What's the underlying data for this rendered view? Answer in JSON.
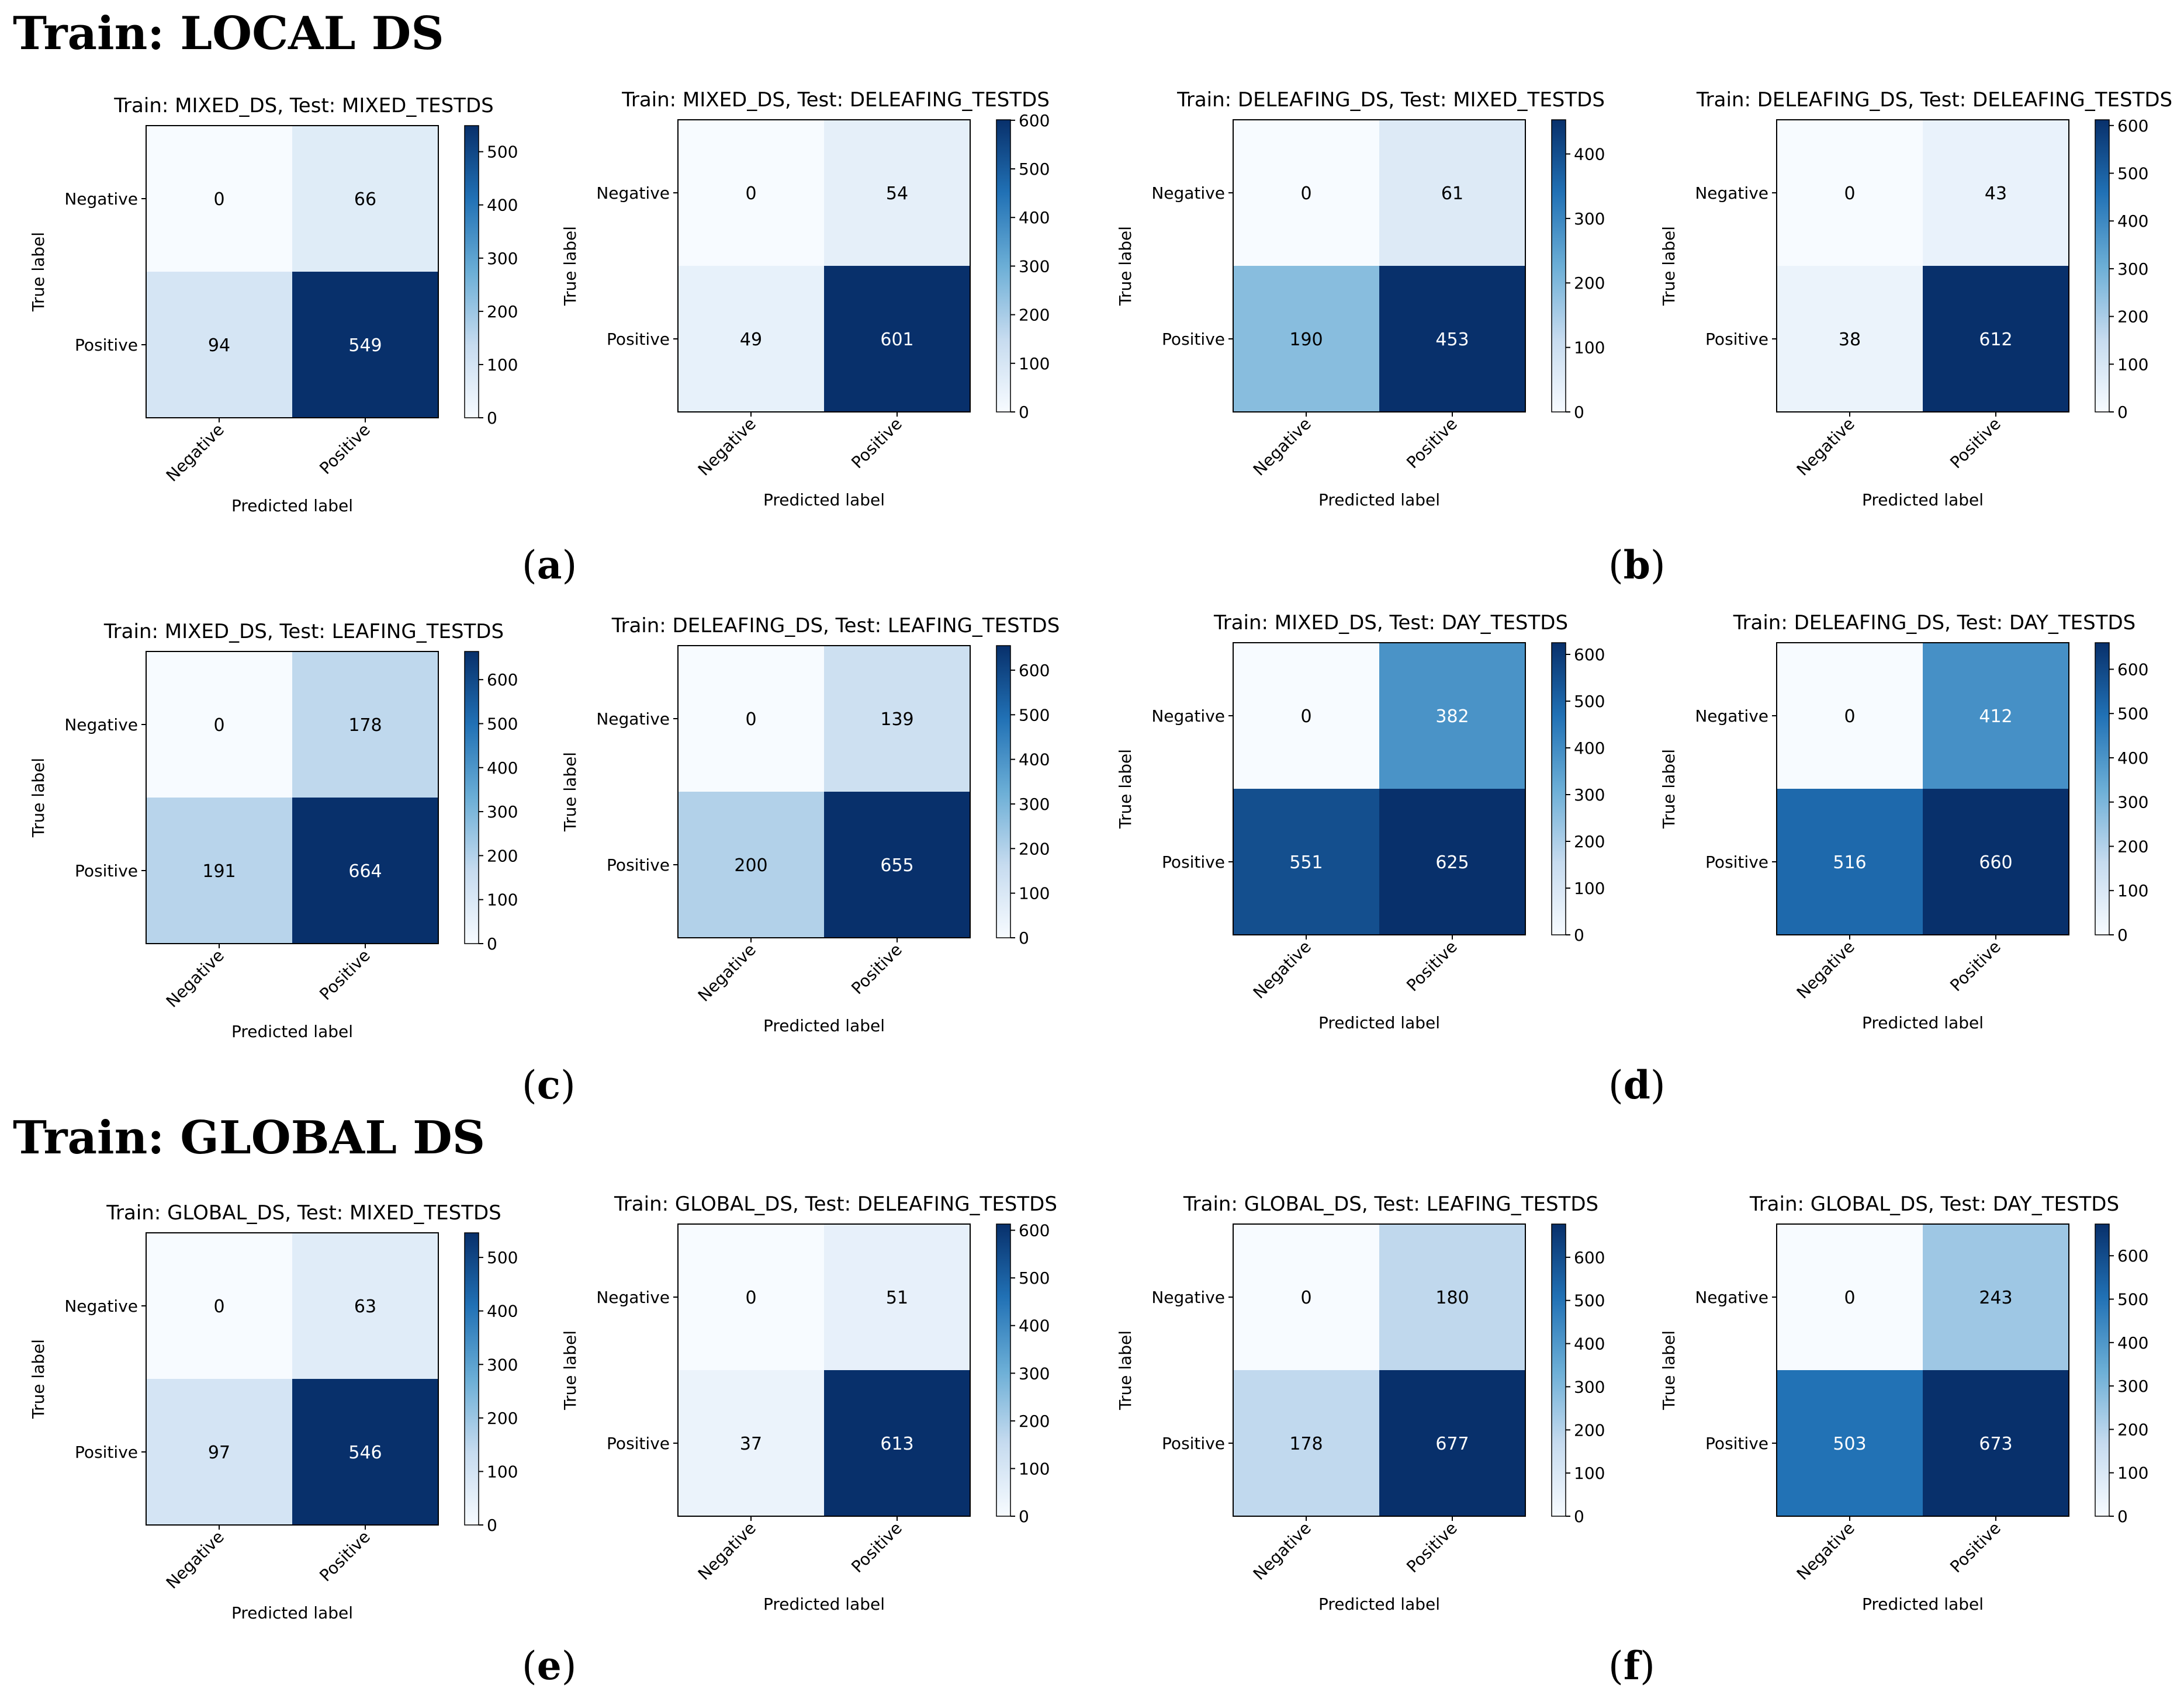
{
  "sections": [
    {
      "title": "Train: LOCAL DS"
    },
    {
      "title": "Train: GLOBAL DS"
    }
  ],
  "panel_labels": [
    "a",
    "b",
    "c",
    "d",
    "e",
    "f"
  ],
  "colorscale": {
    "low": "#f7fbff",
    "mid1": "#c6dbef",
    "mid2": "#6baed6",
    "mid3": "#2171b5",
    "high": "#08306b"
  },
  "chart_data": [
    {
      "type": "heatmap",
      "title": "Train: MIXED_DS, Test: MIXED_TESTDS",
      "row_labels": [
        "Negative",
        "Positive"
      ],
      "col_labels": [
        "Negative",
        "Positive"
      ],
      "values": [
        [
          0,
          66
        ],
        [
          94,
          549
        ]
      ],
      "xlabel": "Predicted label",
      "ylabel": "True label",
      "colorbar_ticks": [
        0,
        100,
        200,
        300,
        400,
        500
      ],
      "colorbar_range": [
        0,
        549
      ]
    },
    {
      "type": "heatmap",
      "title": "Train: MIXED_DS, Test: DELEAFING_TESTDS",
      "row_labels": [
        "Negative",
        "Positive"
      ],
      "col_labels": [
        "Negative",
        "Positive"
      ],
      "values": [
        [
          0,
          54
        ],
        [
          49,
          601
        ]
      ],
      "xlabel": "Predicted label",
      "ylabel": "True label",
      "colorbar_ticks": [
        0,
        100,
        200,
        300,
        400,
        500,
        600
      ],
      "colorbar_range": [
        0,
        601
      ]
    },
    {
      "type": "heatmap",
      "title": "Train: DELEAFING_DS, Test: MIXED_TESTDS",
      "row_labels": [
        "Negative",
        "Positive"
      ],
      "col_labels": [
        "Negative",
        "Positive"
      ],
      "values": [
        [
          0,
          61
        ],
        [
          190,
          453
        ]
      ],
      "xlabel": "Predicted label",
      "ylabel": "True label",
      "colorbar_ticks": [
        0,
        100,
        200,
        300,
        400
      ],
      "colorbar_range": [
        0,
        453
      ]
    },
    {
      "type": "heatmap",
      "title": "Train: DELEAFING_DS, Test: DELEAFING_TESTDS",
      "row_labels": [
        "Negative",
        "Positive"
      ],
      "col_labels": [
        "Negative",
        "Positive"
      ],
      "values": [
        [
          0,
          43
        ],
        [
          38,
          612
        ]
      ],
      "xlabel": "Predicted label",
      "ylabel": "True label",
      "colorbar_ticks": [
        0,
        100,
        200,
        300,
        400,
        500,
        600
      ],
      "colorbar_range": [
        0,
        612
      ]
    },
    {
      "type": "heatmap",
      "title": "Train: MIXED_DS, Test: LEAFING_TESTDS",
      "row_labels": [
        "Negative",
        "Positive"
      ],
      "col_labels": [
        "Negative",
        "Positive"
      ],
      "values": [
        [
          0,
          178
        ],
        [
          191,
          664
        ]
      ],
      "xlabel": "Predicted label",
      "ylabel": "True label",
      "colorbar_ticks": [
        0,
        100,
        200,
        300,
        400,
        500,
        600
      ],
      "colorbar_range": [
        0,
        664
      ]
    },
    {
      "type": "heatmap",
      "title": "Train: DELEAFING_DS, Test: LEAFING_TESTDS",
      "row_labels": [
        "Negative",
        "Positive"
      ],
      "col_labels": [
        "Negative",
        "Positive"
      ],
      "values": [
        [
          0,
          139
        ],
        [
          200,
          655
        ]
      ],
      "xlabel": "Predicted label",
      "ylabel": "True label",
      "colorbar_ticks": [
        0,
        100,
        200,
        300,
        400,
        500,
        600
      ],
      "colorbar_range": [
        0,
        655
      ]
    },
    {
      "type": "heatmap",
      "title": "Train: MIXED_DS, Test: DAY_TESTDS",
      "row_labels": [
        "Negative",
        "Positive"
      ],
      "col_labels": [
        "Negative",
        "Positive"
      ],
      "values": [
        [
          0,
          382
        ],
        [
          551,
          625
        ]
      ],
      "xlabel": "Predicted label",
      "ylabel": "True label",
      "colorbar_ticks": [
        0,
        100,
        200,
        300,
        400,
        500,
        600
      ],
      "colorbar_range": [
        0,
        625
      ]
    },
    {
      "type": "heatmap",
      "title": "Train: DELEAFING_DS, Test: DAY_TESTDS",
      "row_labels": [
        "Negative",
        "Positive"
      ],
      "col_labels": [
        "Negative",
        "Positive"
      ],
      "values": [
        [
          0,
          412
        ],
        [
          516,
          660
        ]
      ],
      "xlabel": "Predicted label",
      "ylabel": "True label",
      "colorbar_ticks": [
        0,
        100,
        200,
        300,
        400,
        500,
        600
      ],
      "colorbar_range": [
        0,
        660
      ]
    },
    {
      "type": "heatmap",
      "title": "Train: GLOBAL_DS, Test: MIXED_TESTDS",
      "row_labels": [
        "Negative",
        "Positive"
      ],
      "col_labels": [
        "Negative",
        "Positive"
      ],
      "values": [
        [
          0,
          63
        ],
        [
          97,
          546
        ]
      ],
      "xlabel": "Predicted label",
      "ylabel": "True label",
      "colorbar_ticks": [
        0,
        100,
        200,
        300,
        400,
        500
      ],
      "colorbar_range": [
        0,
        546
      ]
    },
    {
      "type": "heatmap",
      "title": "Train: GLOBAL_DS, Test: DELEAFING_TESTDS",
      "row_labels": [
        "Negative",
        "Positive"
      ],
      "col_labels": [
        "Negative",
        "Positive"
      ],
      "values": [
        [
          0,
          51
        ],
        [
          37,
          613
        ]
      ],
      "xlabel": "Predicted label",
      "ylabel": "True label",
      "colorbar_ticks": [
        0,
        100,
        200,
        300,
        400,
        500,
        600
      ],
      "colorbar_range": [
        0,
        613
      ]
    },
    {
      "type": "heatmap",
      "title": "Train: GLOBAL_DS, Test: LEAFING_TESTDS",
      "row_labels": [
        "Negative",
        "Positive"
      ],
      "col_labels": [
        "Negative",
        "Positive"
      ],
      "values": [
        [
          0,
          180
        ],
        [
          178,
          677
        ]
      ],
      "xlabel": "Predicted label",
      "ylabel": "True label",
      "colorbar_ticks": [
        0,
        100,
        200,
        300,
        400,
        500,
        600
      ],
      "colorbar_range": [
        0,
        677
      ]
    },
    {
      "type": "heatmap",
      "title": "Train: GLOBAL_DS, Test: DAY_TESTDS",
      "row_labels": [
        "Negative",
        "Positive"
      ],
      "col_labels": [
        "Negative",
        "Positive"
      ],
      "values": [
        [
          0,
          243
        ],
        [
          503,
          673
        ]
      ],
      "xlabel": "Predicted label",
      "ylabel": "True label",
      "colorbar_ticks": [
        0,
        100,
        200,
        300,
        400,
        500,
        600
      ],
      "colorbar_range": [
        0,
        673
      ]
    }
  ]
}
